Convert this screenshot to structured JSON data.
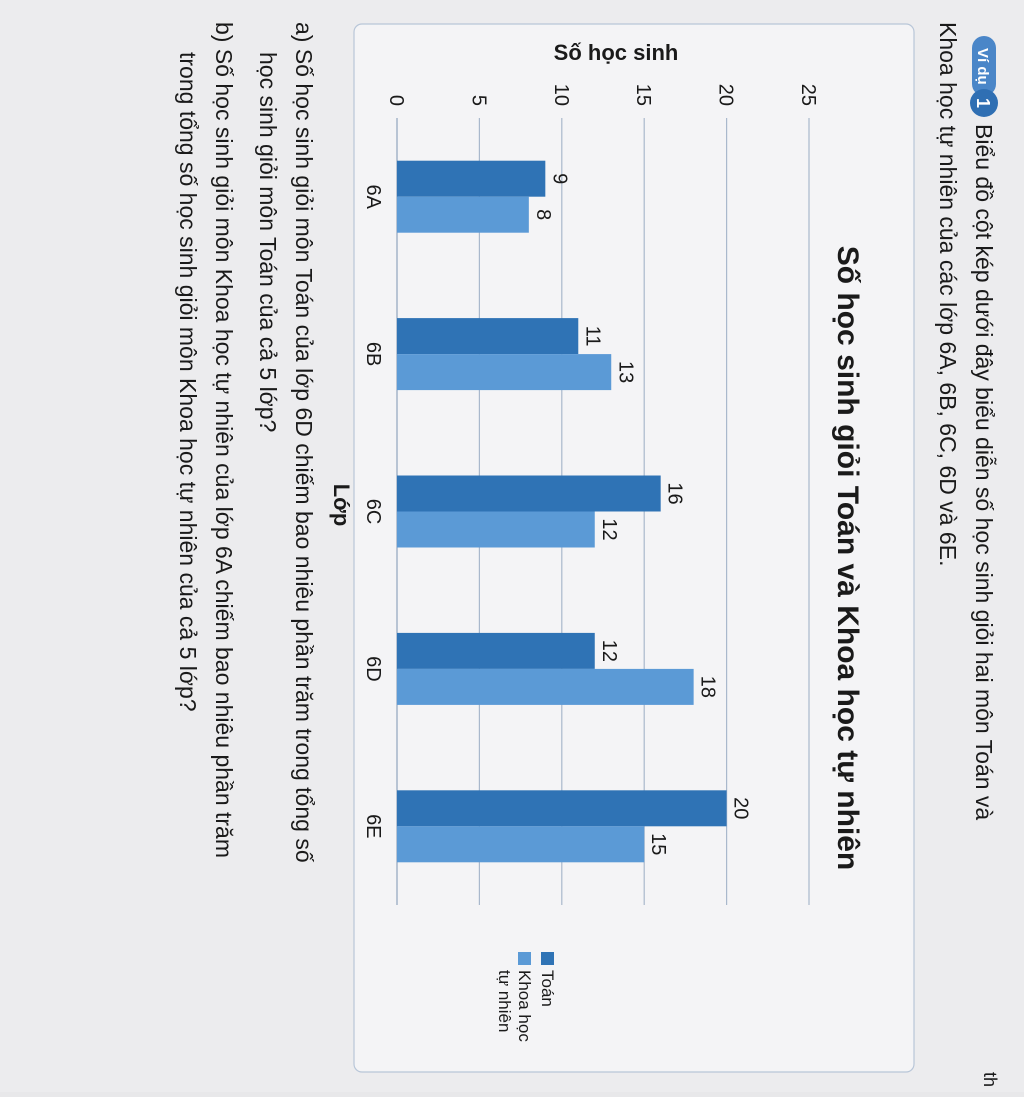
{
  "intro": {
    "badge": "Ví dụ",
    "number": "1",
    "line1": "Biểu đồ cột kép dưới đây biểu diễn số học sinh giỏi hai môn Toán và",
    "line2": "Khoa học tự nhiên của các lớp 6A, 6B, 6C, 6D và 6E."
  },
  "questions": {
    "a_line1": "a) Số học sinh giỏi môn Toán của lớp 6D chiếm bao nhiêu phần trăm trong tổng số",
    "a_line2": "học sinh giỏi môn Toán của cả 5 lớp?",
    "b_line1": "b) Số học sinh giỏi môn Khoa học tự nhiên của lớp 6A chiếm bao nhiêu phần trăm",
    "b_line2": "trong tổng số học sinh giỏi môn Khoa học tự nhiên của cả 5 lớp?"
  },
  "edge_text": {
    "top_right": "th"
  },
  "colors": {
    "toan": "#2f73b5",
    "khtn": "#5b9ad6",
    "grid": "#a9b8cc",
    "text": "#1a1a1a",
    "page": "#e8e8ea",
    "badge": "#3f7fc4"
  },
  "chart_data": {
    "type": "bar",
    "orientation": "vertical",
    "title": "Số học sinh giỏi Toán và Khoa học tự nhiên",
    "xlabel": "Lớp",
    "ylabel": "Số học sinh",
    "categories": [
      "6A",
      "6B",
      "6C",
      "6D",
      "6E"
    ],
    "yticks": [
      0,
      5,
      10,
      15,
      20,
      25
    ],
    "ylim": [
      0,
      25
    ],
    "grid": true,
    "legend_position": "right",
    "legend": {
      "toan_line1": "Toán",
      "khtn_line1": "Khoa học",
      "khtn_line2": "tự nhiên"
    },
    "series": [
      {
        "name": "Toán",
        "values": [
          9,
          11,
          16,
          12,
          20
        ]
      },
      {
        "name": "Khoa học tự nhiên",
        "values": [
          8,
          13,
          12,
          18,
          15
        ]
      }
    ]
  }
}
